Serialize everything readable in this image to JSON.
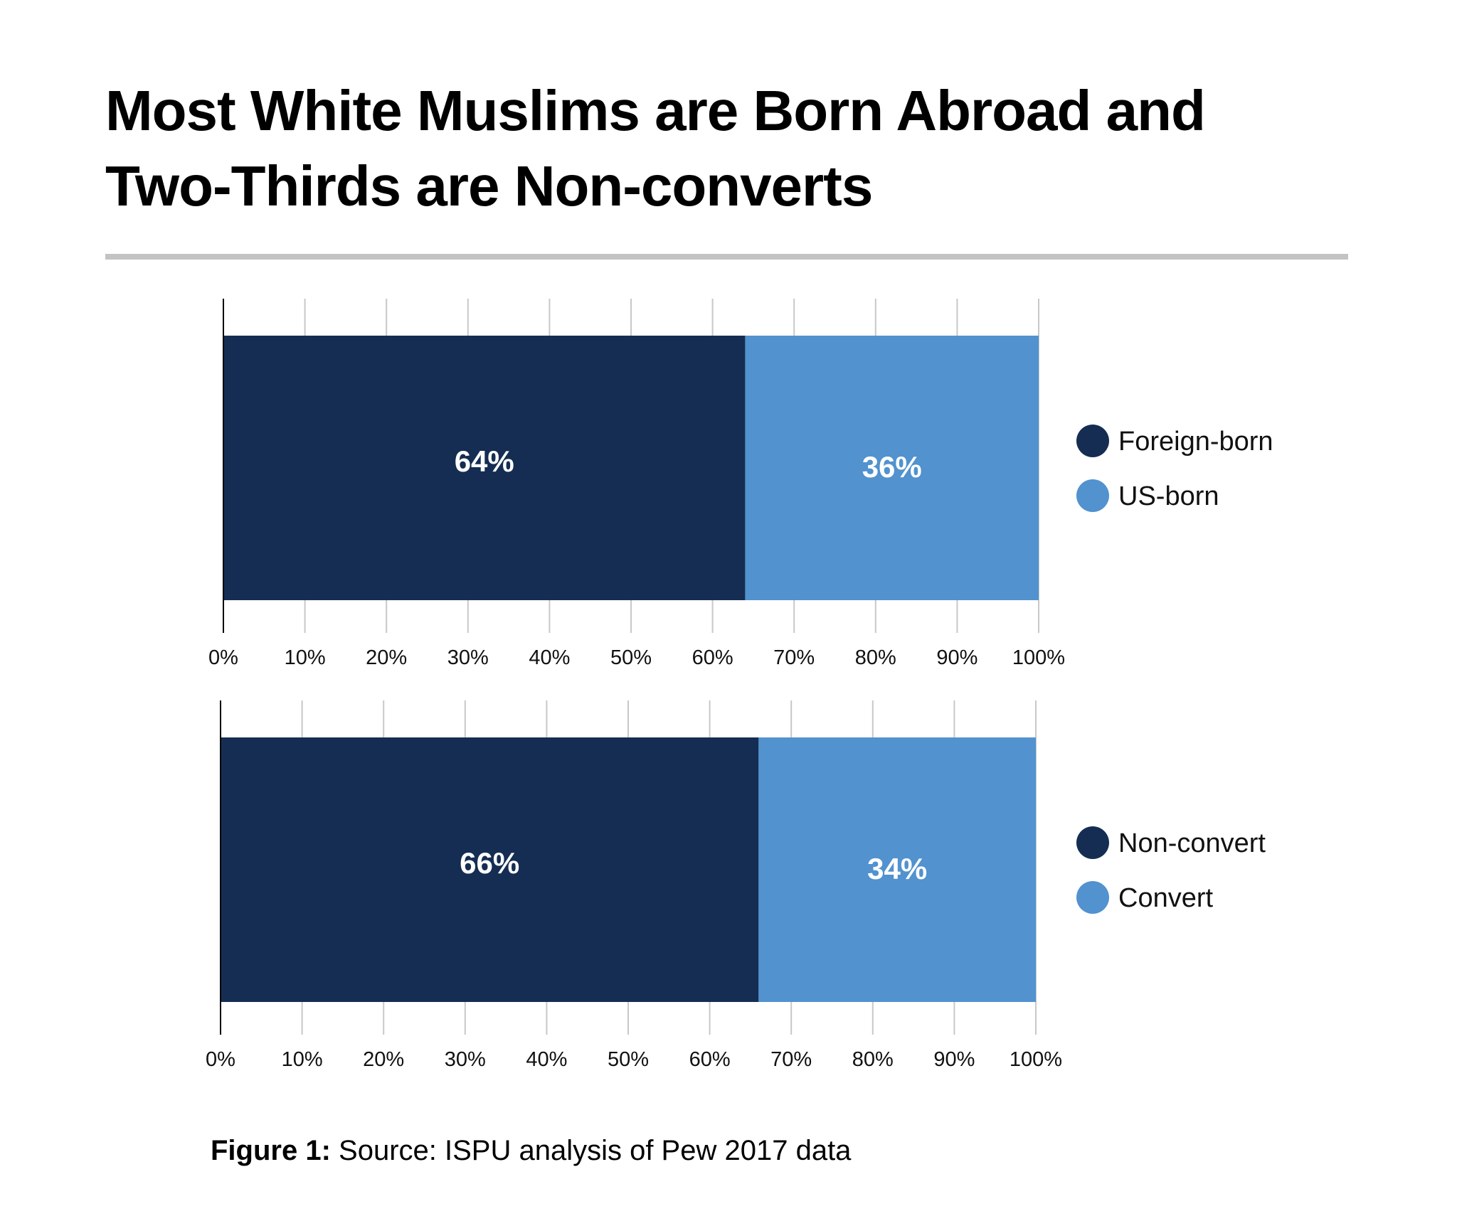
{
  "title": {
    "line1": "Most White Muslims are Born Abroad and",
    "line2": "Two-Thirds are Non-converts"
  },
  "caption": {
    "label": "Figure 1:",
    "text": " Source: ISPU analysis of Pew 2017 data"
  },
  "colors": {
    "dark": "#152d52",
    "light": "#5192cf",
    "gridline": "#c8c8c8",
    "axis": "#000000",
    "rule": "#c3c3c3"
  },
  "chart_data": [
    {
      "type": "bar",
      "orientation": "horizontal",
      "stacked": true,
      "xlim": [
        0,
        100
      ],
      "ticks": [
        "0%",
        "10%",
        "20%",
        "30%",
        "40%",
        "50%",
        "60%",
        "70%",
        "80%",
        "90%",
        "100%"
      ],
      "grid": true,
      "legend_position": "right",
      "series": [
        {
          "name": "Foreign-born",
          "value": 64,
          "label": "64%",
          "color": "#152d52"
        },
        {
          "name": "US-born",
          "value": 36,
          "label": "36%",
          "color": "#5192cf"
        }
      ]
    },
    {
      "type": "bar",
      "orientation": "horizontal",
      "stacked": true,
      "xlim": [
        0,
        100
      ],
      "ticks": [
        "0%",
        "10%",
        "20%",
        "30%",
        "40%",
        "50%",
        "60%",
        "70%",
        "80%",
        "90%",
        "100%"
      ],
      "grid": true,
      "legend_position": "right",
      "series": [
        {
          "name": "Non-convert",
          "value": 66,
          "label": "66%",
          "color": "#152d52"
        },
        {
          "name": "Convert",
          "value": 34,
          "label": "34%",
          "color": "#5192cf"
        }
      ]
    }
  ]
}
